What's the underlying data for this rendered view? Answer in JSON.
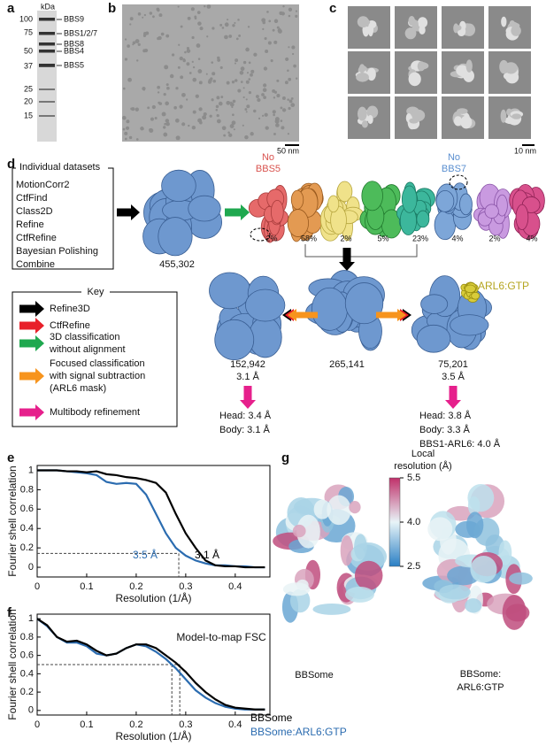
{
  "panel_labels": [
    "a",
    "b",
    "c",
    "d",
    "e",
    "f",
    "g"
  ],
  "a": {
    "unit": "kDa",
    "markers": [
      "100",
      "75",
      "50",
      "37",
      "25",
      "20",
      "15"
    ],
    "bands": [
      "BBS9",
      "BBS1/2/7",
      "BBS8",
      "BBS4",
      "BBS5"
    ]
  },
  "b": {
    "scale_bar": "50 nm"
  },
  "c": {
    "scale_bar": "10 nm"
  },
  "d": {
    "datasets_title": "Individual datasets",
    "steps": [
      "MotionCorr2",
      "CtfFind",
      "Class2D",
      "Refine",
      "CtfRefine",
      "Bayesian Polishing",
      "Combine"
    ],
    "initial_particles": "455,302",
    "missing_bbs5": [
      "No",
      "BBS5"
    ],
    "missing_bbs7": [
      "No",
      "BBS7"
    ],
    "class_percents": [
      "2%",
      "58%",
      "2%",
      "5%",
      "23%",
      "4%",
      "2%",
      "4%"
    ],
    "merged_particles": "265,141",
    "left": {
      "count": "152,942",
      "resolution": "3.1 Å",
      "multibody": [
        "Head: 3.4 Å",
        "Body: 3.1 Å"
      ]
    },
    "right": {
      "count": "75,201",
      "resolution": "3.5 Å",
      "ligand": "ARL6:GTP",
      "multibody": [
        "Head: 3.8 Å",
        "Body: 3.3 Å",
        "BBS1-ARL6: 4.0 Å"
      ]
    },
    "key": {
      "title": "Key",
      "entries": [
        {
          "color": "#000000",
          "text": [
            "Refine3D"
          ]
        },
        {
          "color": "#e8202a",
          "text": [
            "CtfRefine"
          ]
        },
        {
          "color": "#1fa84f",
          "text": [
            "3D classification",
            "without alignment"
          ]
        },
        {
          "color": "#f7941d",
          "text": [
            "Focused classification",
            "with signal subtraction",
            "(ARL6 mask)"
          ]
        },
        {
          "color": "#e6208c",
          "text": [
            "Multibody refinement"
          ]
        }
      ]
    }
  },
  "g": {
    "colorbar_title": [
      "Local",
      "resolution (Å)"
    ],
    "range": [
      2.5,
      5.5
    ],
    "ticks": [
      5.5,
      {
        "value": 4,
        "label": "4.0"
      },
      2.5
    ],
    "maps": [
      [
        "BBSome"
      ],
      [
        "BBSome:",
        "ARL6:GTP"
      ]
    ]
  },
  "chart_data": [
    {
      "type": "line",
      "y_label": "Fourier shell correlation",
      "x_label": "Resolution (1/Å)",
      "x": [
        0,
        0.02,
        0.04,
        0.06,
        0.08,
        0.1,
        0.12,
        0.14,
        0.16,
        0.18,
        0.2,
        0.22,
        0.24,
        0.26,
        0.28,
        0.3,
        0.32,
        0.34,
        0.36,
        0.38,
        0.4,
        0.42,
        0.44,
        0.46
      ],
      "series": [
        {
          "color": "#000000",
          "label": "3.1 Å",
          "values": [
            1,
            1,
            1,
            0.99,
            0.99,
            0.98,
            0.99,
            0.96,
            0.95,
            0.93,
            0.92,
            0.9,
            0.87,
            0.77,
            0.55,
            0.35,
            0.2,
            0.07,
            0.02,
            0.01,
            0.01,
            0,
            0,
            0
          ]
        },
        {
          "color": "#2b6cb0",
          "label": "3.5 Å",
          "values": [
            1,
            1,
            1,
            0.99,
            0.98,
            0.97,
            0.95,
            0.88,
            0.86,
            0.87,
            0.86,
            0.75,
            0.55,
            0.35,
            0.2,
            0.12,
            0.07,
            0.04,
            0.02,
            0.02,
            0.01,
            0.01,
            0,
            0
          ]
        }
      ],
      "ref_y": 0.143,
      "ref_x": [
        0.286
      ],
      "xlim": [
        0,
        0.47
      ],
      "ylim": [
        -0.1,
        1.05
      ],
      "xticks": [
        0,
        0.1,
        0.2,
        0.3,
        0.4
      ],
      "yticks": [
        0,
        0.2,
        0.4,
        0.6,
        0.8,
        1
      ]
    },
    {
      "type": "line",
      "title": "Model-to-map FSC",
      "y_label": "Fourier shell correlation",
      "x_label": "Resolution (1/Å)",
      "x": [
        0,
        0.02,
        0.04,
        0.06,
        0.08,
        0.1,
        0.12,
        0.14,
        0.16,
        0.18,
        0.2,
        0.22,
        0.24,
        0.26,
        0.28,
        0.3,
        0.32,
        0.34,
        0.36,
        0.38,
        0.4,
        0.42,
        0.44,
        0.46
      ],
      "series": [
        {
          "name": "BBSome",
          "color": "#000000",
          "values": [
            1,
            0.93,
            0.8,
            0.75,
            0.76,
            0.72,
            0.65,
            0.6,
            0.62,
            0.68,
            0.72,
            0.72,
            0.68,
            0.6,
            0.52,
            0.42,
            0.3,
            0.2,
            0.12,
            0.06,
            0.03,
            0.02,
            0.01,
            0.01
          ]
        },
        {
          "name": "BBSome:ARL6:GTP",
          "color": "#2b6cb0",
          "values": [
            1,
            0.92,
            0.8,
            0.74,
            0.74,
            0.7,
            0.62,
            0.6,
            0.62,
            0.68,
            0.72,
            0.7,
            0.64,
            0.56,
            0.46,
            0.34,
            0.22,
            0.14,
            0.08,
            0.04,
            0.02,
            0.01,
            0.01,
            0.01
          ]
        }
      ],
      "ref_y": 0.5,
      "ref_x": [
        0.272,
        0.288
      ],
      "xlim": [
        0,
        0.47
      ],
      "ylim": [
        -0.05,
        1.05
      ],
      "xticks": [
        0,
        0.1,
        0.2,
        0.3,
        0.4
      ],
      "yticks": [
        0,
        0.2,
        0.4,
        0.6,
        0.8,
        1
      ]
    }
  ]
}
